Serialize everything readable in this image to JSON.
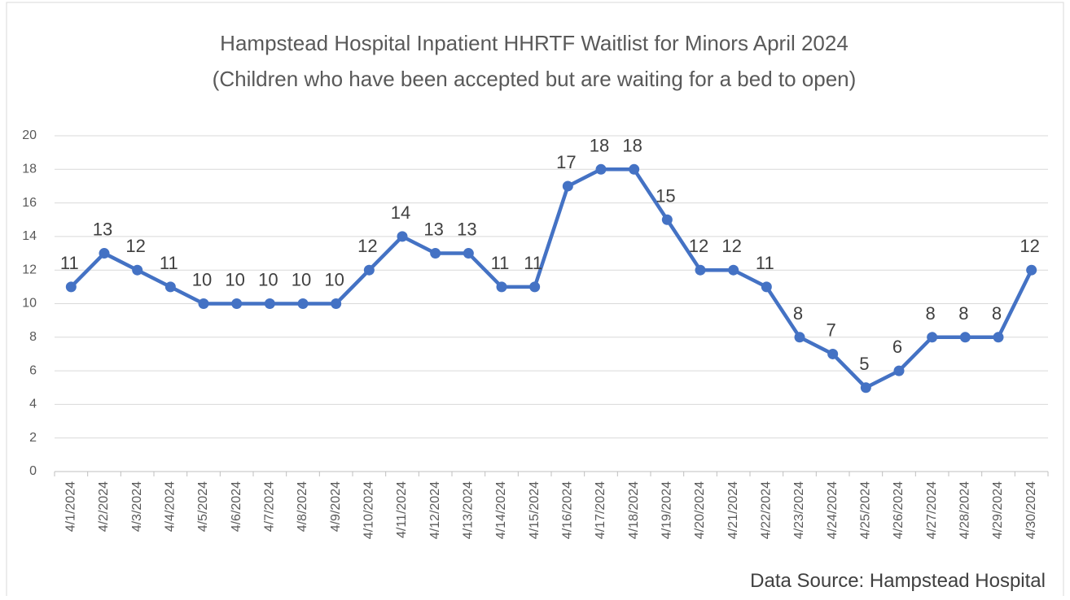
{
  "chart_data": {
    "type": "line",
    "title": [
      "Hampstead Hospital Inpatient HHRTF Waitlist for Minors April 2024",
      "(Children who have been accepted but are waiting for a bed to open)"
    ],
    "annotation": "Data Source: Hampstead Hospital",
    "categories": [
      "4/1/2024",
      "4/2/2024",
      "4/3/2024",
      "4/4/2024",
      "4/5/2024",
      "4/6/2024",
      "4/7/2024",
      "4/8/2024",
      "4/9/2024",
      "4/10/2024",
      "4/11/2024",
      "4/12/2024",
      "4/13/2024",
      "4/14/2024",
      "4/15/2024",
      "4/16/2024",
      "4/17/2024",
      "4/18/2024",
      "4/19/2024",
      "4/20/2024",
      "4/21/2024",
      "4/22/2024",
      "4/23/2024",
      "4/24/2024",
      "4/25/2024",
      "4/26/2024",
      "4/27/2024",
      "4/28/2024",
      "4/29/2024",
      "4/30/2024"
    ],
    "values": [
      11,
      13,
      12,
      11,
      10,
      10,
      10,
      10,
      10,
      12,
      14,
      13,
      13,
      11,
      11,
      17,
      18,
      18,
      15,
      12,
      12,
      11,
      8,
      7,
      5,
      6,
      8,
      8,
      8,
      12
    ],
    "color": "#4472c4",
    "ylim": [
      0,
      20
    ],
    "yticks": [
      0,
      2,
      4,
      6,
      8,
      10,
      12,
      14,
      16,
      18,
      20
    ],
    "grid": true
  }
}
